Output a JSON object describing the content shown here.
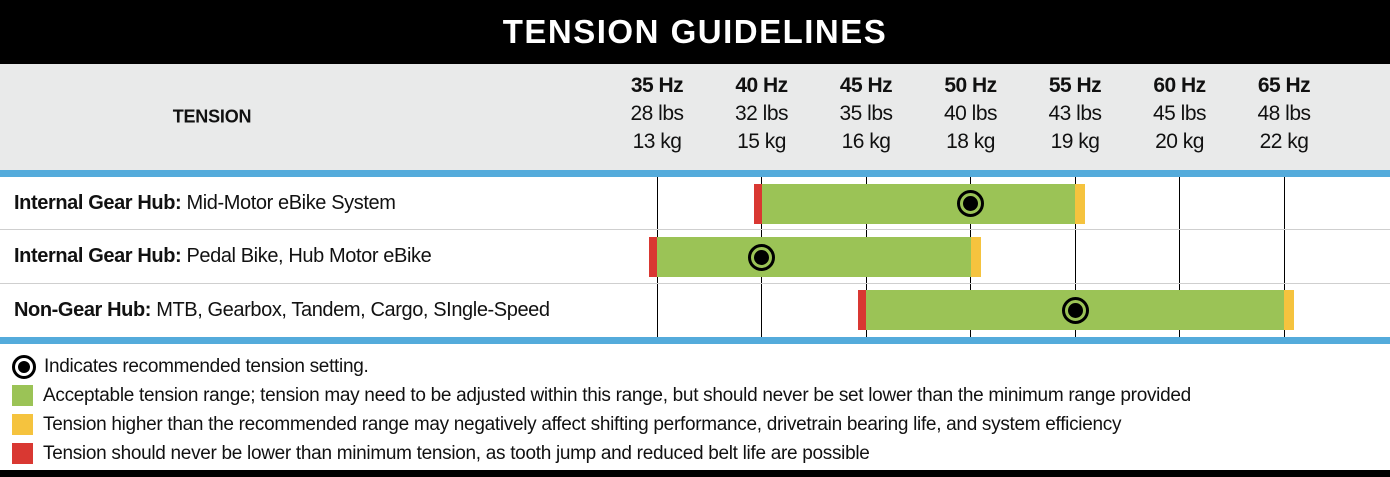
{
  "title": "TENSION GUIDELINES",
  "header": {
    "tension_label": "TENSION",
    "columns": [
      {
        "hz": "35 Hz",
        "lbs": "28 lbs",
        "kg": "13 kg"
      },
      {
        "hz": "40 Hz",
        "lbs": "32 lbs",
        "kg": "15 kg"
      },
      {
        "hz": "45 Hz",
        "lbs": "35 lbs",
        "kg": "16 kg"
      },
      {
        "hz": "50 Hz",
        "lbs": "40 lbs",
        "kg": "18 kg"
      },
      {
        "hz": "55 Hz",
        "lbs": "43 lbs",
        "kg": "19 kg"
      },
      {
        "hz": "60 Hz",
        "lbs": "45 lbs",
        "kg": "20 kg"
      },
      {
        "hz": "65 Hz",
        "lbs": "48 lbs",
        "kg": "22 kg"
      }
    ]
  },
  "rows": [
    {
      "label_bold": "Internal Gear Hub:",
      "label_rest": " Mid-Motor eBike System"
    },
    {
      "label_bold": "Internal Gear Hub:",
      "label_rest": " Pedal Bike, Hub Motor eBike"
    },
    {
      "label_bold": "Non-Gear Hub:",
      "label_rest": " MTB, Gearbox, Tandem, Cargo, SIngle-Speed"
    }
  ],
  "chart_data": {
    "type": "bar",
    "subtype": "horizontal-range-bars",
    "title": "TENSION GUIDELINES",
    "axis": {
      "label": "TENSION",
      "ticks_hz": [
        35,
        40,
        45,
        50,
        55,
        60,
        65
      ],
      "ticks_lbs": [
        28,
        32,
        35,
        40,
        43,
        45,
        48
      ],
      "ticks_kg": [
        13,
        15,
        16,
        18,
        19,
        20,
        22
      ],
      "range_hz": [
        35,
        65
      ],
      "grid": true
    },
    "series": [
      {
        "name": "Internal Gear Hub: Mid-Motor eBike System",
        "acceptable_hz": [
          40,
          55
        ],
        "recommended_hz": 50
      },
      {
        "name": "Internal Gear Hub: Pedal Bike, Hub Motor eBike",
        "acceptable_hz": [
          35,
          50
        ],
        "recommended_hz": 40
      },
      {
        "name": "Non-Gear Hub: MTB, Gearbox, Tandem, Cargo, SIngle-Speed",
        "acceptable_hz": [
          45,
          65
        ],
        "recommended_hz": 55
      }
    ]
  },
  "legend": {
    "items": [
      {
        "icon": "recommended-dot-icon",
        "text": "Indicates recommended tension setting."
      },
      {
        "icon": "acceptable-range-swatch",
        "text": "Acceptable tension range; tension may need to be adjusted within this range, but should never be set lower than the minimum range provided"
      },
      {
        "icon": "high-tension-swatch",
        "text": "Tension higher than the recommended range may negatively affect shifting performance, drivetrain bearing life, and system efficiency"
      },
      {
        "icon": "low-tension-swatch",
        "text": "Tension should never be lower than minimum tension, as tooth jump and reduced belt life are possible"
      }
    ]
  },
  "colors": {
    "acceptable_green": "#9bc356",
    "high_yellow": "#f5c33e",
    "low_red": "#d93832",
    "rule_blue": "#54abdb",
    "header_gray": "#e9eaea",
    "bar_black": "#000000"
  }
}
